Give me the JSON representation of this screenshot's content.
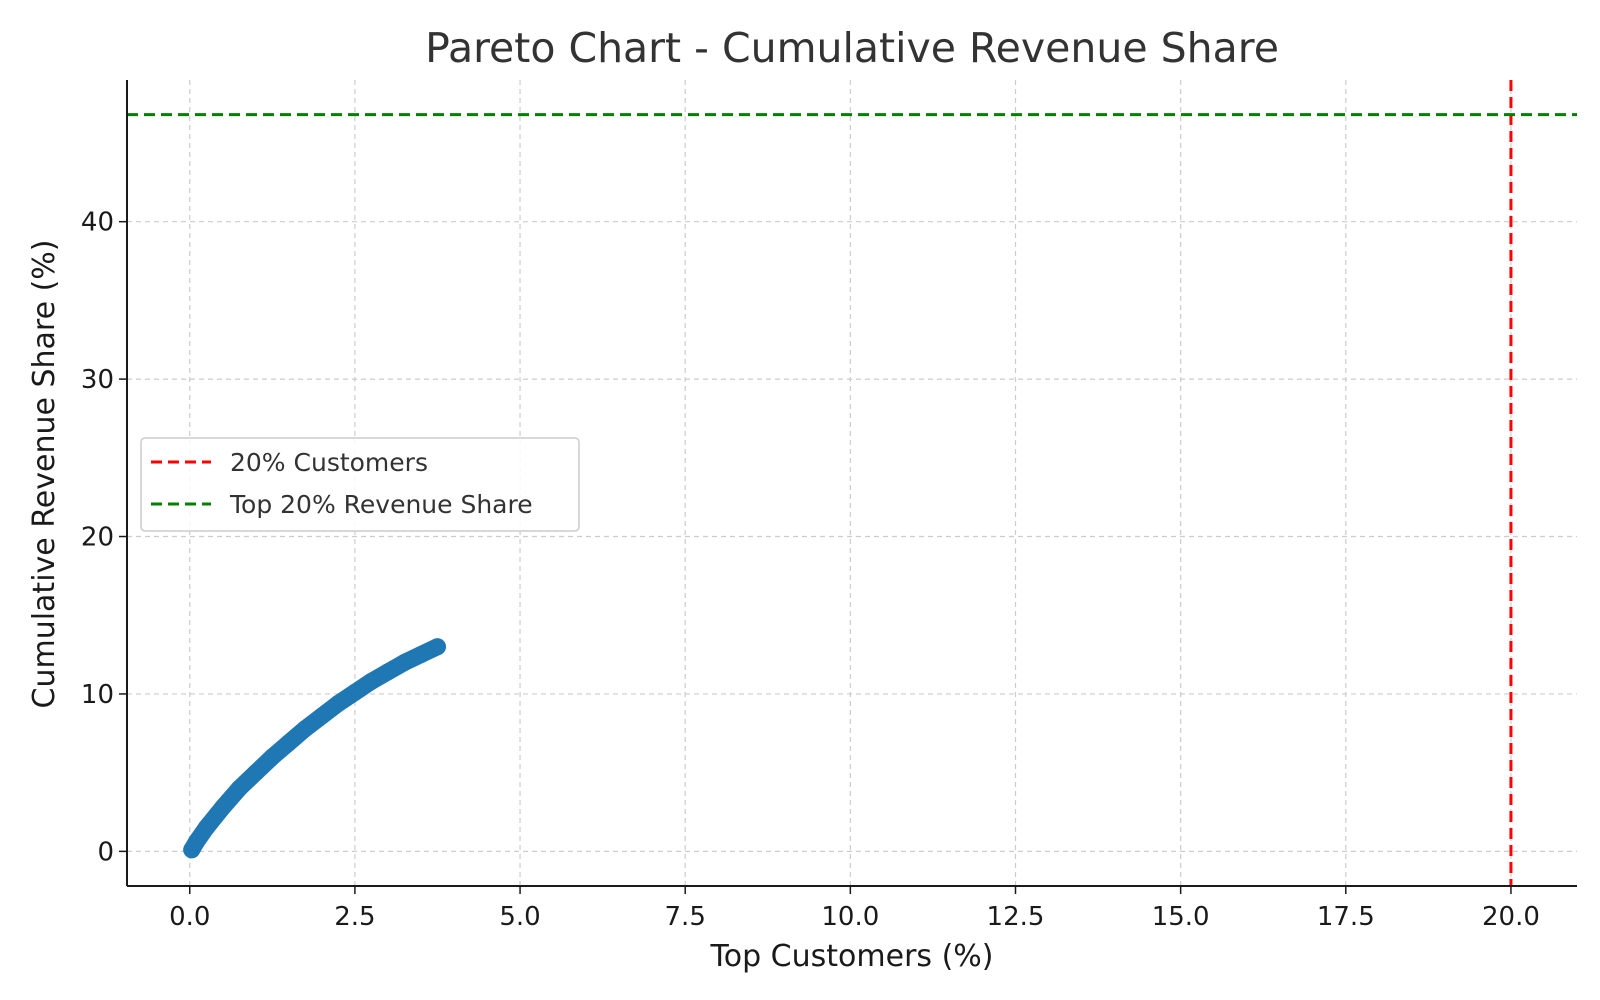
{
  "chart_data": {
    "type": "line",
    "title": "Pareto Chart - Cumulative Revenue Share",
    "xlabel": "Top Customers (%)",
    "ylabel": "Cumulative Revenue Share (%)",
    "xlim": [
      -0.95,
      21.0
    ],
    "ylim": [
      -2.2,
      49.0
    ],
    "x_ticks": [
      0.0,
      2.5,
      5.0,
      7.5,
      10.0,
      12.5,
      15.0,
      17.5,
      20.0
    ],
    "x_tick_labels": [
      "0.0",
      "2.5",
      "5.0",
      "7.5",
      "10.0",
      "12.5",
      "15.0",
      "17.5",
      "20.0"
    ],
    "y_ticks": [
      0,
      10,
      20,
      30,
      40
    ],
    "y_tick_labels": [
      "0",
      "10",
      "20",
      "30",
      "40"
    ],
    "grid": true,
    "legend_position": "center-left",
    "series": [
      {
        "color": "#1f77b4",
        "marker": "circle",
        "x": [
          0.03,
          0.1,
          0.25,
          0.5,
          0.75,
          1.0,
          1.25,
          1.5,
          1.75,
          2.0,
          2.25,
          2.5,
          2.75,
          3.0,
          3.25,
          3.5,
          3.75
        ],
        "y": [
          0.1,
          0.6,
          1.5,
          2.8,
          4.0,
          5.0,
          6.0,
          6.9,
          7.8,
          8.6,
          9.4,
          10.1,
          10.8,
          11.4,
          12.0,
          12.5,
          13.0
        ]
      }
    ],
    "reference_lines": [
      {
        "name": "20% Customers",
        "orientation": "vertical",
        "value": 20.0,
        "color": "#ff0000",
        "style": "dashed"
      },
      {
        "name": "Top 20% Revenue Share",
        "orientation": "horizontal",
        "value": 46.8,
        "color": "#008000",
        "style": "dashed"
      }
    ]
  }
}
